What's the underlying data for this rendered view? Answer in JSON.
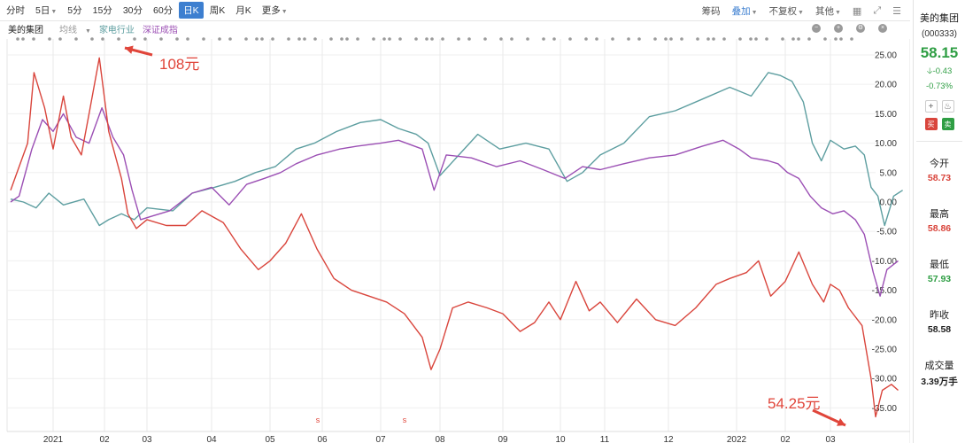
{
  "toolbar": {
    "periods": [
      "分时",
      "5日",
      "5分",
      "15分",
      "30分",
      "60分",
      "日K",
      "周K",
      "月K",
      "更多"
    ],
    "active_period": "日K",
    "right": {
      "chips": "筹码",
      "overlay": "叠加",
      "adjust": "不复权",
      "other": "其他"
    }
  },
  "legend": {
    "stock": "美的集团",
    "ma": "均线",
    "industry": "家电行业",
    "index": "深证成指"
  },
  "annotations": {
    "high": "108元",
    "low": "54.25元"
  },
  "chart_data": {
    "type": "line",
    "x_ticks": [
      "2021",
      "02",
      "03",
      "04",
      "05",
      "06",
      "07",
      "08",
      "09",
      "10",
      "11",
      "12",
      "2022",
      "02",
      "03"
    ],
    "ylim": [
      -37.5,
      26.5
    ],
    "y_ticks": [
      "25.00",
      "20.00",
      "15.00",
      "10.00",
      "5.00",
      "0.00",
      "-5.00",
      "-10.00",
      "-15.00",
      "-20.00",
      "-25.00",
      "-30.00",
      "-35.00"
    ],
    "series": [
      {
        "name": "美的集团",
        "color": "#d9453c",
        "points": [
          [
            0,
            2
          ],
          [
            0.15,
            5
          ],
          [
            0.4,
            10
          ],
          [
            0.55,
            22
          ],
          [
            0.8,
            16
          ],
          [
            1.0,
            9
          ],
          [
            1.2,
            18
          ],
          [
            1.35,
            11
          ],
          [
            1.55,
            8
          ],
          [
            1.7,
            15
          ],
          [
            1.9,
            24.5
          ],
          [
            2.1,
            12
          ],
          [
            2.25,
            8
          ],
          [
            2.4,
            4
          ],
          [
            2.55,
            -2
          ],
          [
            2.75,
            -4.5
          ],
          [
            3.0,
            -3
          ],
          [
            3.3,
            -4
          ],
          [
            3.6,
            -4
          ],
          [
            3.85,
            -1.5
          ],
          [
            4.2,
            -3.5
          ],
          [
            4.5,
            -8
          ],
          [
            4.8,
            -11.5
          ],
          [
            5.0,
            -10
          ],
          [
            5.3,
            -7
          ],
          [
            5.6,
            -2
          ],
          [
            5.9,
            -8
          ],
          [
            6.2,
            -13
          ],
          [
            6.5,
            -15
          ],
          [
            6.8,
            -16
          ],
          [
            7.1,
            -17
          ],
          [
            7.4,
            -19
          ],
          [
            7.7,
            -23
          ],
          [
            7.85,
            -28.5
          ],
          [
            8.0,
            -25
          ],
          [
            8.2,
            -18
          ],
          [
            8.45,
            -17
          ],
          [
            8.75,
            -18
          ],
          [
            9.0,
            -19
          ],
          [
            9.3,
            -22
          ],
          [
            9.55,
            -20.5
          ],
          [
            9.8,
            -17
          ],
          [
            10.0,
            -20
          ],
          [
            10.35,
            -13.5
          ],
          [
            10.65,
            -18.5
          ],
          [
            10.9,
            -17
          ],
          [
            11.2,
            -20.5
          ],
          [
            11.5,
            -16.5
          ],
          [
            11.8,
            -20
          ],
          [
            12.1,
            -21
          ],
          [
            12.4,
            -18
          ],
          [
            12.7,
            -14
          ],
          [
            12.9,
            -13
          ],
          [
            13.2,
            -12
          ],
          [
            13.45,
            -10
          ],
          [
            13.7,
            -16
          ],
          [
            14.0,
            -13.5
          ],
          [
            14.3,
            -8.5
          ],
          [
            14.6,
            -14
          ],
          [
            14.85,
            -17
          ],
          [
            15.0,
            -14
          ],
          [
            15.2,
            -15
          ],
          [
            15.4,
            -18
          ],
          [
            15.7,
            -21
          ],
          [
            15.9,
            -30
          ],
          [
            16.0,
            -36.5
          ],
          [
            16.15,
            -32
          ],
          [
            16.35,
            -31
          ],
          [
            16.5,
            -32
          ]
        ]
      },
      {
        "name": "深证成指",
        "color": "#9b4fb4",
        "points": [
          [
            0,
            0
          ],
          [
            0.2,
            1
          ],
          [
            0.5,
            9
          ],
          [
            0.75,
            14
          ],
          [
            1.0,
            12
          ],
          [
            1.2,
            15
          ],
          [
            1.45,
            11
          ],
          [
            1.7,
            10
          ],
          [
            1.95,
            16
          ],
          [
            2.2,
            11
          ],
          [
            2.45,
            8
          ],
          [
            2.65,
            2
          ],
          [
            2.85,
            -3
          ],
          [
            3.05,
            -2.5
          ],
          [
            3.35,
            -1.5
          ],
          [
            3.7,
            1.5
          ],
          [
            4.0,
            2.5
          ],
          [
            4.3,
            -0.5
          ],
          [
            4.6,
            3
          ],
          [
            4.9,
            4
          ],
          [
            5.2,
            5
          ],
          [
            5.5,
            6.5
          ],
          [
            5.9,
            8
          ],
          [
            6.3,
            9
          ],
          [
            6.6,
            9.5
          ],
          [
            7.0,
            10
          ],
          [
            7.3,
            10.5
          ],
          [
            7.7,
            9
          ],
          [
            7.9,
            2
          ],
          [
            8.1,
            8
          ],
          [
            8.5,
            7.5
          ],
          [
            8.9,
            6
          ],
          [
            9.3,
            7
          ],
          [
            9.7,
            5.5
          ],
          [
            10.1,
            4
          ],
          [
            10.5,
            6
          ],
          [
            10.9,
            5.5
          ],
          [
            11.3,
            6.5
          ],
          [
            11.7,
            7.5
          ],
          [
            12.1,
            8
          ],
          [
            12.5,
            9.5
          ],
          [
            12.8,
            10.5
          ],
          [
            13.05,
            9
          ],
          [
            13.3,
            7.5
          ],
          [
            13.65,
            7
          ],
          [
            13.85,
            6.5
          ],
          [
            14.05,
            5
          ],
          [
            14.3,
            4
          ],
          [
            14.55,
            1
          ],
          [
            14.8,
            -1
          ],
          [
            15.05,
            -2
          ],
          [
            15.3,
            -1.5
          ],
          [
            15.55,
            -3
          ],
          [
            15.75,
            -5.5
          ],
          [
            15.95,
            -12
          ],
          [
            16.1,
            -16
          ],
          [
            16.25,
            -11.5
          ],
          [
            16.5,
            -10
          ]
        ]
      },
      {
        "name": "家电行业",
        "color": "#5d9ea0",
        "points": [
          [
            0,
            0.5
          ],
          [
            0.3,
            0
          ],
          [
            0.6,
            -1
          ],
          [
            0.9,
            1.5
          ],
          [
            1.2,
            -0.5
          ],
          [
            1.6,
            0.5
          ],
          [
            1.9,
            -4
          ],
          [
            2.1,
            -3
          ],
          [
            2.4,
            -2
          ],
          [
            2.7,
            -3
          ],
          [
            3.0,
            -1
          ],
          [
            3.4,
            -1.5
          ],
          [
            3.7,
            1.5
          ],
          [
            4.05,
            2.5
          ],
          [
            4.4,
            3.5
          ],
          [
            4.75,
            5
          ],
          [
            5.1,
            6
          ],
          [
            5.5,
            9
          ],
          [
            5.85,
            10
          ],
          [
            6.25,
            12
          ],
          [
            6.65,
            13.5
          ],
          [
            7.0,
            14
          ],
          [
            7.3,
            12.5
          ],
          [
            7.6,
            11.5
          ],
          [
            7.8,
            10
          ],
          [
            8.0,
            4.5
          ],
          [
            8.3,
            8
          ],
          [
            8.6,
            11.5
          ],
          [
            8.95,
            9
          ],
          [
            9.4,
            10
          ],
          [
            9.8,
            9
          ],
          [
            10.15,
            3.5
          ],
          [
            10.5,
            5
          ],
          [
            10.9,
            8
          ],
          [
            11.3,
            10
          ],
          [
            11.7,
            14.5
          ],
          [
            12.1,
            15.5
          ],
          [
            12.5,
            17.5
          ],
          [
            12.9,
            19.5
          ],
          [
            13.3,
            18
          ],
          [
            13.65,
            22
          ],
          [
            13.9,
            21.5
          ],
          [
            14.15,
            20.5
          ],
          [
            14.4,
            17
          ],
          [
            14.6,
            10
          ],
          [
            14.8,
            7
          ],
          [
            15.0,
            10.5
          ],
          [
            15.3,
            9
          ],
          [
            15.55,
            9.5
          ],
          [
            15.75,
            8
          ],
          [
            15.9,
            2.5
          ],
          [
            16.05,
            1
          ],
          [
            16.2,
            -4
          ],
          [
            16.4,
            1
          ],
          [
            16.6,
            2
          ]
        ]
      }
    ]
  },
  "panel": {
    "name": "美的集团",
    "code": "(000333)",
    "price": "58.15",
    "change": "-0.43",
    "change_pct": "-0.73%",
    "buy": "买",
    "sell": "卖",
    "open_label": "今开",
    "open": "58.73",
    "high_label": "最高",
    "high": "58.86",
    "low_label": "最低",
    "low": "57.93",
    "prev_label": "昨收",
    "prev": "58.58",
    "volume_label": "成交量",
    "volume": "3.39万手"
  }
}
